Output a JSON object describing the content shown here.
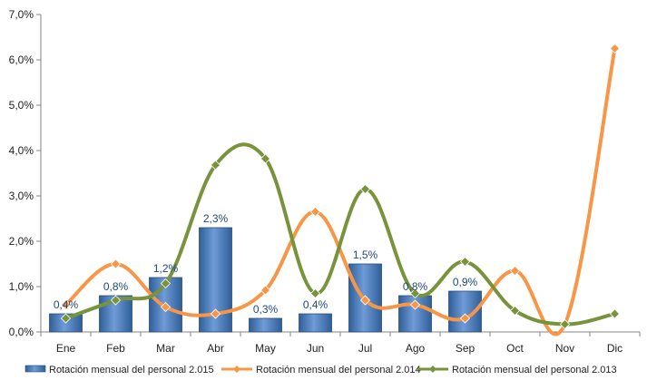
{
  "chart_data": {
    "type": "bar",
    "categories": [
      "Ene",
      "Feb",
      "Mar",
      "Abr",
      "May",
      "Jun",
      "Jul",
      "Ago",
      "Sep",
      "Oct",
      "Nov",
      "Dic"
    ],
    "ylim": [
      0,
      7
    ],
    "yticks": [
      "0,0%",
      "1,0%",
      "2,0%",
      "3,0%",
      "4,0%",
      "5,0%",
      "6,0%",
      "7,0%"
    ],
    "grid": false,
    "legend_position": "bottom",
    "series": [
      {
        "name": "Rotación mensual del personal 2.015",
        "type": "bar",
        "color": "#4F81BD",
        "values": [
          0.4,
          0.8,
          1.2,
          2.3,
          0.3,
          0.4,
          1.5,
          0.8,
          0.9,
          null,
          null,
          null
        ],
        "labels": [
          "0,4%",
          "0,8%",
          "1,2%",
          "2,3%",
          "0,3%",
          "0,4%",
          "1,5%",
          "0,8%",
          "0,9%",
          "",
          "",
          ""
        ]
      },
      {
        "name": "Rotación mensual del personal 2.014",
        "type": "line",
        "color": "#F79646",
        "values": [
          0.6,
          1.5,
          0.55,
          0.4,
          0.92,
          2.65,
          0.7,
          0.6,
          0.3,
          1.35,
          0.17,
          6.25
        ]
      },
      {
        "name": "Rotación mensual del personal 2.013",
        "type": "line",
        "color": "#77933C",
        "values": [
          0.3,
          0.7,
          1.07,
          3.68,
          3.82,
          0.85,
          3.15,
          0.85,
          1.55,
          0.47,
          0.17,
          0.4
        ]
      }
    ]
  }
}
